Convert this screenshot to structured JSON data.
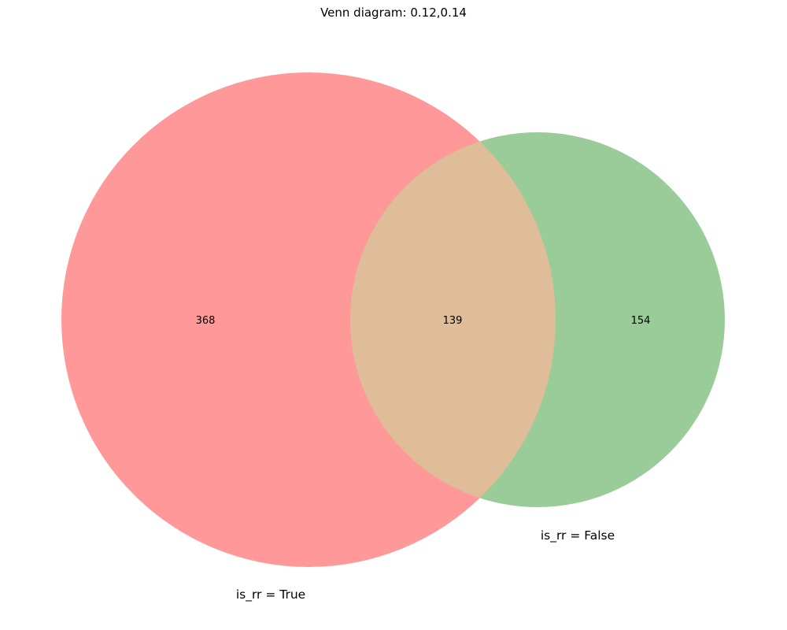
{
  "title": "Venn diagram: 0.12,0.14",
  "sets": [
    {
      "label": "is_rr = True",
      "color": "#ff9999"
    },
    {
      "label": "is_rr = False",
      "color": "#99cc99"
    }
  ],
  "overlap_color": "#dfbd99",
  "regions": {
    "left_only": "368",
    "intersection": "139",
    "right_only": "154"
  },
  "chart_data": {
    "type": "venn",
    "title": "Venn diagram: 0.12,0.14",
    "sets": [
      "is_rr = True",
      "is_rr = False"
    ],
    "subsets": {
      "10": 368,
      "11": 139,
      "01": 154
    }
  }
}
